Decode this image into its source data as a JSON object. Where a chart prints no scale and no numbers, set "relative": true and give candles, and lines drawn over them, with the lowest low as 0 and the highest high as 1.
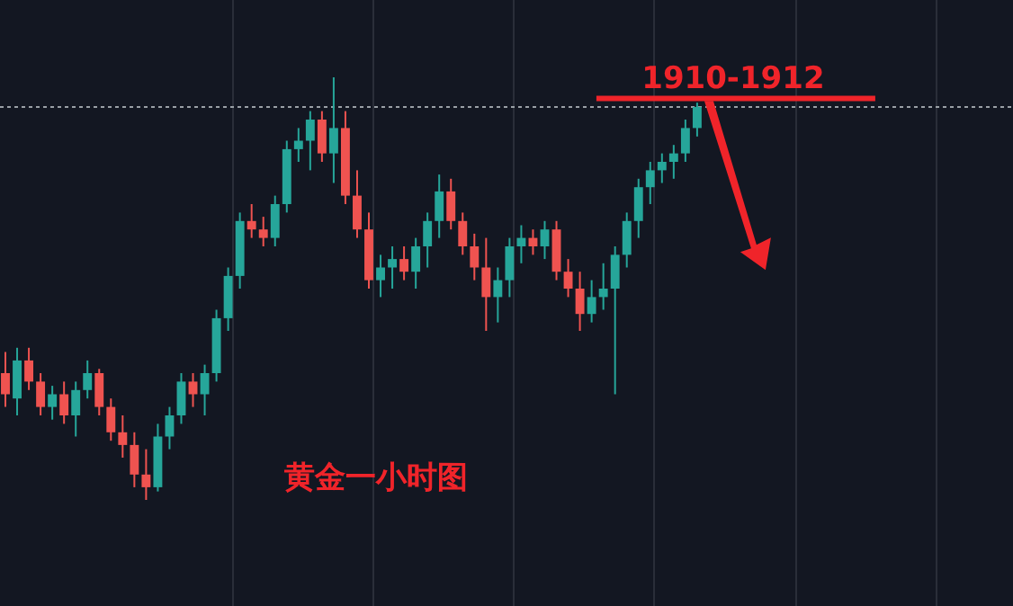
{
  "chart_data": {
    "type": "candlestick",
    "relative": true,
    "grid": "x",
    "categories": [
      null,
      null,
      null,
      null,
      null,
      null,
      null,
      null,
      null,
      null,
      null,
      null,
      null,
      null,
      null,
      null,
      null,
      null,
      null,
      null,
      null,
      null,
      null,
      null,
      null,
      null,
      null,
      null,
      null,
      null,
      null,
      null,
      null,
      null,
      null,
      null,
      null,
      null,
      null,
      null,
      null,
      null,
      null,
      null,
      null,
      null,
      null,
      null,
      null,
      null,
      null,
      null,
      null,
      null,
      null,
      null,
      null,
      null,
      null,
      null
    ],
    "ohlc": [
      [
        0.3,
        0.35,
        0.22,
        0.25
      ],
      [
        0.24,
        0.36,
        0.2,
        0.33
      ],
      [
        0.33,
        0.36,
        0.26,
        0.28
      ],
      [
        0.28,
        0.3,
        0.2,
        0.22
      ],
      [
        0.22,
        0.27,
        0.19,
        0.25
      ],
      [
        0.25,
        0.28,
        0.18,
        0.2
      ],
      [
        0.2,
        0.28,
        0.15,
        0.26
      ],
      [
        0.26,
        0.33,
        0.24,
        0.3
      ],
      [
        0.3,
        0.31,
        0.2,
        0.22
      ],
      [
        0.22,
        0.24,
        0.14,
        0.16
      ],
      [
        0.16,
        0.2,
        0.1,
        0.13
      ],
      [
        0.13,
        0.16,
        0.03,
        0.06
      ],
      [
        0.06,
        0.12,
        0.0,
        0.03
      ],
      [
        0.03,
        0.18,
        0.02,
        0.15
      ],
      [
        0.15,
        0.22,
        0.12,
        0.2
      ],
      [
        0.2,
        0.3,
        0.18,
        0.28
      ],
      [
        0.28,
        0.3,
        0.22,
        0.25
      ],
      [
        0.25,
        0.32,
        0.2,
        0.3
      ],
      [
        0.3,
        0.45,
        0.28,
        0.43
      ],
      [
        0.43,
        0.55,
        0.4,
        0.53
      ],
      [
        0.53,
        0.68,
        0.5,
        0.66
      ],
      [
        0.66,
        0.7,
        0.62,
        0.64
      ],
      [
        0.64,
        0.67,
        0.6,
        0.62
      ],
      [
        0.62,
        0.72,
        0.6,
        0.7
      ],
      [
        0.7,
        0.85,
        0.68,
        0.83
      ],
      [
        0.83,
        0.88,
        0.8,
        0.85
      ],
      [
        0.85,
        0.92,
        0.78,
        0.9
      ],
      [
        0.9,
        0.92,
        0.8,
        0.82
      ],
      [
        0.82,
        1.0,
        0.75,
        0.88
      ],
      [
        0.88,
        0.92,
        0.7,
        0.72
      ],
      [
        0.72,
        0.78,
        0.62,
        0.64
      ],
      [
        0.64,
        0.68,
        0.5,
        0.52
      ],
      [
        0.52,
        0.58,
        0.48,
        0.55
      ],
      [
        0.55,
        0.6,
        0.5,
        0.57
      ],
      [
        0.57,
        0.6,
        0.52,
        0.54
      ],
      [
        0.54,
        0.62,
        0.5,
        0.6
      ],
      [
        0.6,
        0.68,
        0.55,
        0.66
      ],
      [
        0.66,
        0.77,
        0.62,
        0.73
      ],
      [
        0.73,
        0.76,
        0.64,
        0.66
      ],
      [
        0.66,
        0.68,
        0.58,
        0.6
      ],
      [
        0.6,
        0.63,
        0.52,
        0.55
      ],
      [
        0.55,
        0.62,
        0.4,
        0.48
      ],
      [
        0.48,
        0.55,
        0.42,
        0.52
      ],
      [
        0.52,
        0.62,
        0.48,
        0.6
      ],
      [
        0.6,
        0.65,
        0.56,
        0.62
      ],
      [
        0.62,
        0.64,
        0.58,
        0.6
      ],
      [
        0.6,
        0.66,
        0.57,
        0.64
      ],
      [
        0.64,
        0.66,
        0.52,
        0.54
      ],
      [
        0.54,
        0.57,
        0.48,
        0.5
      ],
      [
        0.5,
        0.54,
        0.4,
        0.44
      ],
      [
        0.44,
        0.52,
        0.42,
        0.48
      ],
      [
        0.48,
        0.56,
        0.45,
        0.5
      ],
      [
        0.5,
        0.6,
        0.25,
        0.58
      ],
      [
        0.58,
        0.68,
        0.55,
        0.66
      ],
      [
        0.66,
        0.76,
        0.62,
        0.74
      ],
      [
        0.74,
        0.8,
        0.7,
        0.78
      ],
      [
        0.78,
        0.82,
        0.75,
        0.8
      ],
      [
        0.8,
        0.84,
        0.76,
        0.82
      ],
      [
        0.82,
        0.9,
        0.8,
        0.88
      ],
      [
        0.88,
        0.94,
        0.86,
        0.93
      ]
    ],
    "colors": [
      "#ef5350",
      "#26a69a",
      "#ef5350",
      "#ef5350",
      "#26a69a",
      "#ef5350",
      "#26a69a",
      "#26a69a",
      "#ef5350",
      "#ef5350",
      "#ef5350",
      "#ef5350",
      "#ef5350",
      "#26a69a",
      "#26a69a",
      "#26a69a",
      "#ef5350",
      "#26a69a",
      "#26a69a",
      "#26a69a",
      "#26a69a",
      "#ef5350",
      "#ef5350",
      "#26a69a",
      "#26a69a",
      "#26a69a",
      "#26a69a",
      "#ef5350",
      "#26a69a",
      "#ef5350",
      "#ef5350",
      "#ef5350",
      "#26a69a",
      "#26a69a",
      "#ef5350",
      "#26a69a",
      "#26a69a",
      "#26a69a",
      "#ef5350",
      "#ef5350",
      "#ef5350",
      "#ef5350",
      "#26a69a",
      "#26a69a",
      "#26a69a",
      "#ef5350",
      "#26a69a",
      "#ef5350",
      "#ef5350",
      "#ef5350",
      "#26a69a",
      "#26a69a",
      "#26a69a",
      "#26a69a",
      "#26a69a",
      "#26a69a",
      "#26a69a",
      "#26a69a",
      "#26a69a",
      "#26a69a"
    ],
    "ref_lines": [
      {
        "axis": "y",
        "value": 0.93,
        "color": "#9aa0a6",
        "line_style": "dotted"
      },
      {
        "axis": "y",
        "value": 0.95,
        "color": "#f0242a",
        "line_style": "solid"
      }
    ],
    "annotations": [
      {
        "text": "1910-1912",
        "y": 0.94
      },
      "黄金一小时图"
    ]
  }
}
